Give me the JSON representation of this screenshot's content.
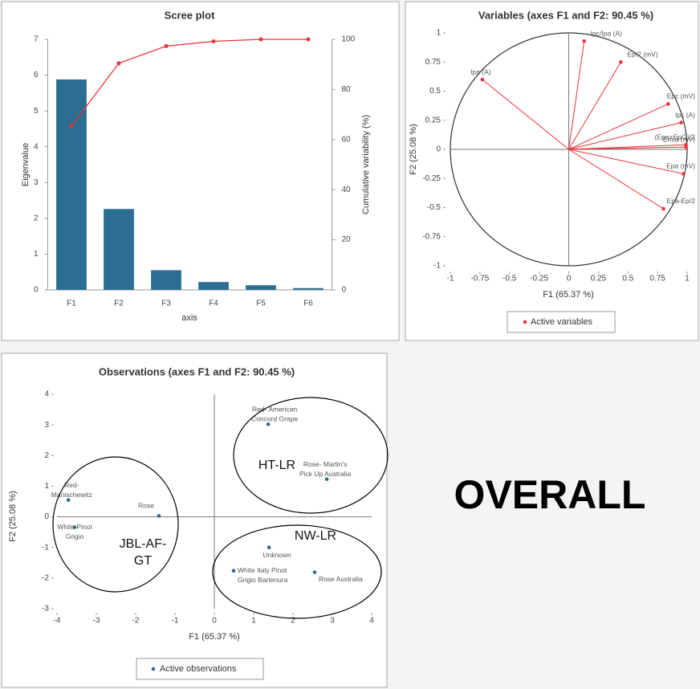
{
  "heading": "OVERALL",
  "chart_data": [
    {
      "type": "bar",
      "title": "Scree plot",
      "x_label": "axis",
      "y_label": "Eigenvalue",
      "y2_label": "Cumulative variability (%)",
      "categories": [
        "F1",
        "F2",
        "F3",
        "F4",
        "F5",
        "F6"
      ],
      "series": [
        {
          "name": "Eigenvalue",
          "type": "bar",
          "color": "#2c6e91",
          "values": [
            5.88,
            2.26,
            0.55,
            0.22,
            0.13,
            0.05
          ]
        },
        {
          "name": "Cumulative variability (%)",
          "type": "line",
          "axis": "y2",
          "color": "#e8333a",
          "values": [
            65.37,
            90.45,
            97.3,
            99.2,
            100,
            100
          ]
        }
      ],
      "ylim": [
        0,
        7
      ],
      "yticks": [
        0,
        1,
        2,
        3,
        4,
        5,
        6,
        7
      ],
      "y2lim": [
        0,
        100
      ],
      "y2ticks": [
        0,
        20,
        40,
        60,
        80,
        100
      ]
    },
    {
      "type": "circle",
      "title": "Variables (axes F1 and F2: 90.45 %)",
      "x_label": "F1 (65.37 %)",
      "y_label": "F2 (25.08 %)",
      "series": [
        {
          "name": "Active variables",
          "color": "#e8333a",
          "labels": [
            "Ipa (A)",
            "Ipc/Ipa (A)",
            "Ep/2 (mV)",
            "Epc (mV)",
            "Ipc (A)",
            "(Epa+Ep/2)/2",
            "Emid (mV)",
            "Epa (mV)",
            "Epa-Ep/2"
          ],
          "x": [
            -0.73,
            0.13,
            0.44,
            0.84,
            0.95,
            0.99,
            0.99,
            0.97,
            0.8
          ],
          "values": [
            0.6,
            0.93,
            0.75,
            0.39,
            0.23,
            0.04,
            0.02,
            -0.21,
            -0.51
          ]
        }
      ],
      "xlim": [
        -1,
        1
      ],
      "xticks": [
        -1,
        -0.75,
        -0.5,
        -0.25,
        0,
        0.25,
        0.5,
        0.75,
        1
      ],
      "ylim": [
        -1,
        1
      ],
      "yticks": [
        -1,
        -0.75,
        -0.5,
        -0.25,
        0,
        0.25,
        0.5,
        0.75,
        1
      ]
    },
    {
      "type": "scatter",
      "title": "Observations (axes F1 and F2: 90.45 %)",
      "x_label": "F1 (65.37 %)",
      "y_label": "F2 (25.08 %)",
      "series": [
        {
          "name": "Active observations",
          "color": "#2c6e91",
          "labels": [
            [
              "Red- American",
              "Concord Grape"
            ],
            [
              "Rose- Martin's",
              "Pick Up Australia"
            ],
            [
              "Red-",
              "Manischewitz"
            ],
            [
              "Rose"
            ],
            [
              "White Pinot",
              "Grigio"
            ],
            [
              "Unknown"
            ],
            [
              "White Italy Pinot",
              "Grigio Bartenura"
            ],
            [
              "Rose Australia"
            ]
          ],
          "x": [
            1.37,
            2.86,
            -3.71,
            -1.41,
            -3.55,
            1.39,
            0.49,
            2.55
          ],
          "values": [
            3.02,
            1.23,
            0.55,
            0.03,
            -0.34,
            -1.0,
            -1.76,
            -1.81
          ]
        }
      ],
      "annotations": [
        [
          "HT-LR"
        ],
        [
          "NW-LR"
        ],
        [
          "JBL-AF-",
          "GT"
        ]
      ],
      "xlim": [
        -4,
        4
      ],
      "xticks": [
        -4,
        -3,
        -2,
        -1,
        0,
        1,
        2,
        3,
        4
      ],
      "ylim": [
        -3,
        4
      ],
      "yticks": [
        -3,
        -2,
        -1,
        0,
        1,
        2,
        3,
        4
      ]
    }
  ]
}
